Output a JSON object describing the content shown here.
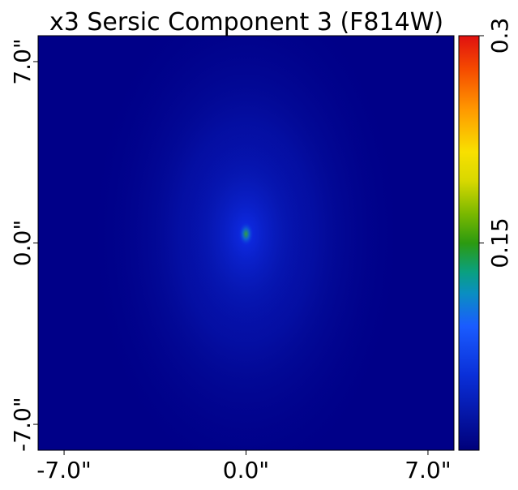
{
  "chart_data": {
    "type": "heatmap",
    "title": "x3 Sersic Component 3 (F814W)",
    "xlabel": "",
    "ylabel": "",
    "x_ticks": [
      {
        "value": -7.0,
        "label": "-7.0\""
      },
      {
        "value": 0.0,
        "label": "0.0\""
      },
      {
        "value": 7.0,
        "label": "7.0\""
      }
    ],
    "y_ticks": [
      {
        "value": -7.0,
        "label": "-7.0\""
      },
      {
        "value": 0.0,
        "label": "0.0\""
      },
      {
        "value": 7.0,
        "label": "7.0\""
      }
    ],
    "xlim": [
      -8.0,
      8.0
    ],
    "ylim": [
      -8.0,
      8.0
    ],
    "image": {
      "profile": "sersic",
      "center": [
        0.0,
        0.35
      ],
      "axis_ratio": 0.62,
      "peak_value": 0.15,
      "background_value": 0.0
    },
    "colorbar": {
      "colormap": "jet-like",
      "range": [
        0.0,
        0.3
      ],
      "ticks": [
        {
          "value": 0.15,
          "label": "0.15"
        },
        {
          "value": 0.3,
          "label": "0.3"
        }
      ]
    }
  }
}
